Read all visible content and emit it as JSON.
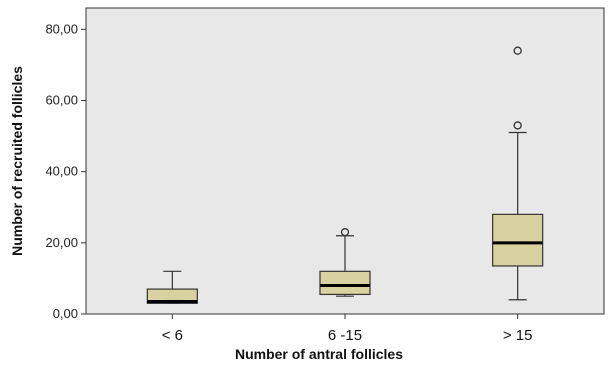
{
  "chart_data": {
    "type": "box",
    "xlabel": "Number of antral follicles",
    "ylabel": "Number of recruited follicles",
    "ylim": [
      0,
      86
    ],
    "yticks": [
      0,
      20,
      40,
      60,
      80
    ],
    "ytick_labels": [
      "0,00",
      "20,00",
      "40,00",
      "60,00",
      "80,00"
    ],
    "grid": false,
    "colors": {
      "plot_bg": "#e8e8e8",
      "box_fill": "#d8d1a0",
      "outline": "#333333"
    },
    "categories": [
      "< 6",
      "6 -15",
      "> 15"
    ],
    "boxes": [
      {
        "category": "< 6",
        "whisker_low": 3,
        "q1": 3,
        "median": 3.5,
        "q3": 7,
        "whisker_high": 12,
        "outliers": []
      },
      {
        "category": "6 -15",
        "whisker_low": 5,
        "q1": 5.5,
        "median": 8,
        "q3": 12,
        "whisker_high": 22,
        "outliers": [
          23
        ]
      },
      {
        "category": "> 15",
        "whisker_low": 4,
        "q1": 13.5,
        "median": 20,
        "q3": 28,
        "whisker_high": 51,
        "outliers": [
          53,
          74
        ]
      }
    ]
  }
}
